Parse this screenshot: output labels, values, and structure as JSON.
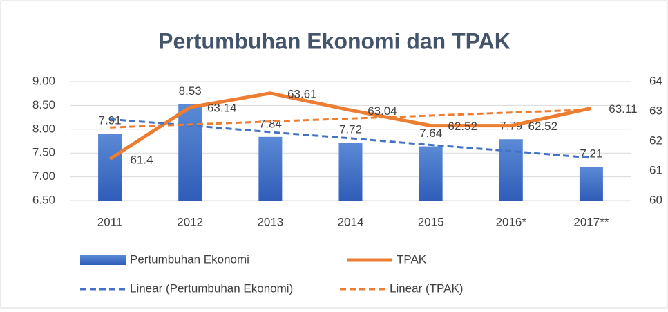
{
  "chart_data": {
    "type": "combo",
    "title": "Pertumbuhan Ekonomi dan TPAK",
    "categories": [
      "2011",
      "2012",
      "2013",
      "2014",
      "2015",
      "2016*",
      "2017**"
    ],
    "series": [
      {
        "name": "Pertumbuhan Ekonomi",
        "type": "bar",
        "color": "#4472c4",
        "values": [
          7.91,
          8.53,
          7.84,
          7.72,
          7.64,
          7.79,
          7.21
        ],
        "labels": true
      },
      {
        "name": "TPAK",
        "type": "line",
        "axis": "y2",
        "color": "#ed7d31",
        "values": [
          61.4,
          63.14,
          63.61,
          63.04,
          62.52,
          62.52,
          63.11
        ],
        "labels": true
      },
      {
        "name": "Linear (Pertumbuhan Ekonomi)",
        "type": "line",
        "dashed": true,
        "color": "#4472c4",
        "values": [
          8.21,
          8.08,
          7.94,
          7.81,
          7.67,
          7.54,
          7.4
        ]
      },
      {
        "name": "Linear (TPAK)",
        "type": "line",
        "dashed": true,
        "axis": "y2",
        "color": "#ed7d31",
        "values": [
          62.46,
          62.56,
          62.66,
          62.76,
          62.86,
          62.96,
          63.06
        ]
      }
    ],
    "ylim": [
      6.5,
      9
    ],
    "yticks": [
      {
        "value": 6.5,
        "label": "6.50"
      },
      {
        "value": 7,
        "label": "7.00"
      },
      {
        "value": 7.5,
        "label": "7.50"
      },
      {
        "value": 8,
        "label": "8.00"
      },
      {
        "value": 8.5,
        "label": "8.50"
      },
      {
        "value": 9,
        "label": "9.00"
      }
    ],
    "y2lim": [
      60,
      64
    ],
    "y2ticks": [
      60,
      61,
      62,
      63,
      64
    ],
    "grid": true,
    "legend": "bottom"
  }
}
